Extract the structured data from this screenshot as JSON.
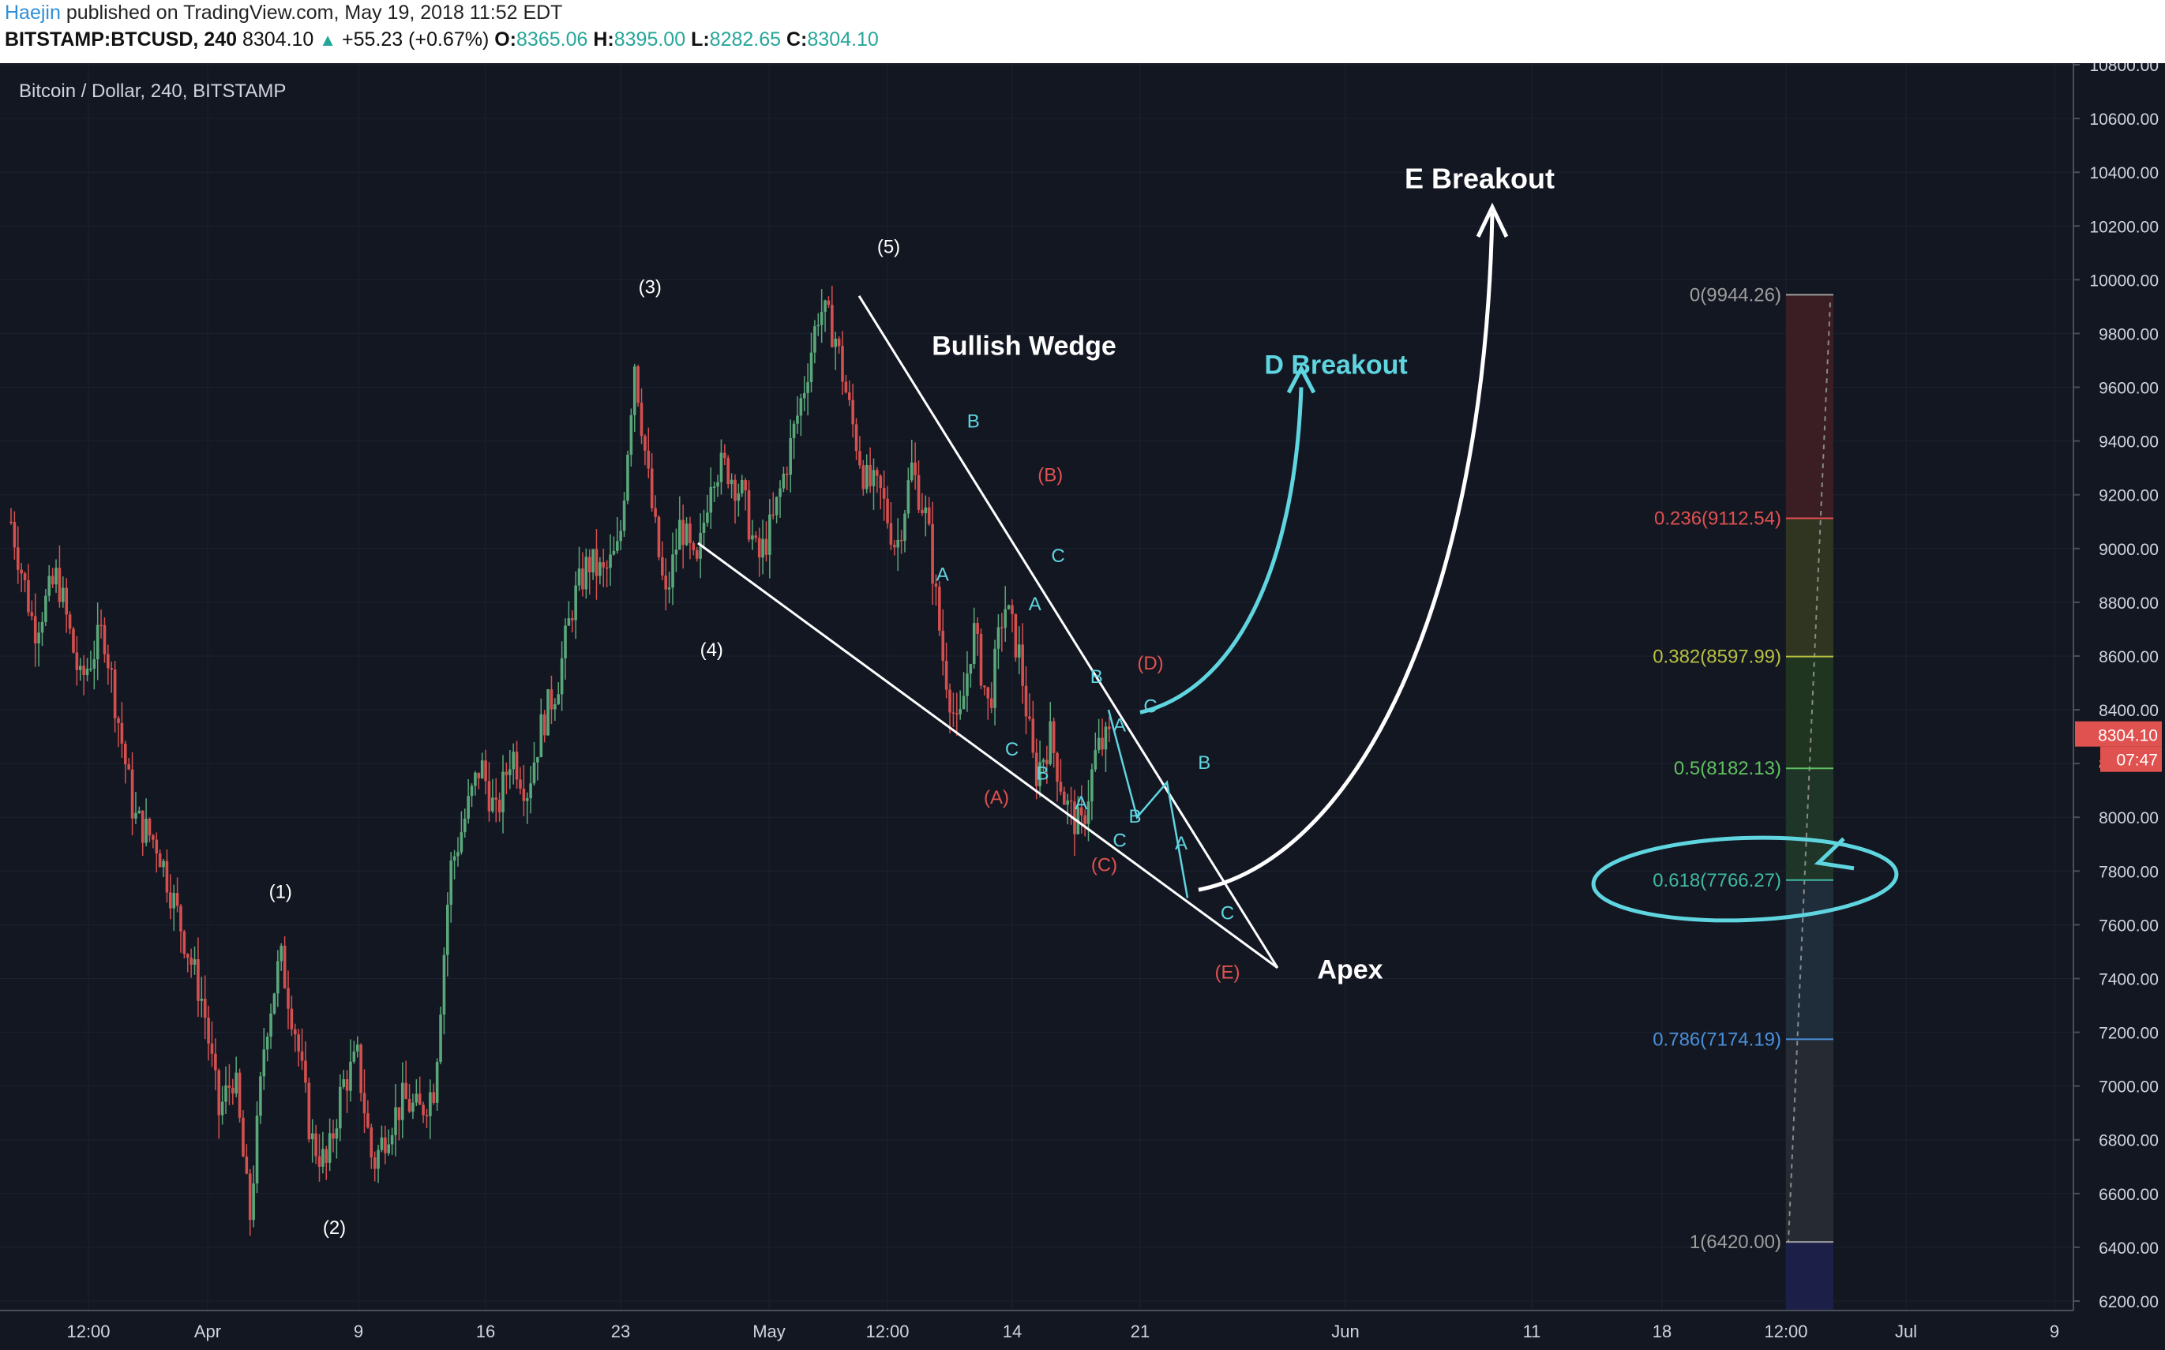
{
  "header": {
    "author": "Haejin",
    "published_text": "published on TradingView.com, May 19, 2018 11:52 EDT",
    "symbol": "BITSTAMP:BTCUSD, 240",
    "last": "8304.10",
    "change": "+55.23 (+0.67%)",
    "o_label": "O:",
    "o_value": "8365.06",
    "h_label": "H:",
    "h_value": "8395.00",
    "l_label": "L:",
    "l_value": "8282.65",
    "c_label": "C:",
    "c_value": "8304.10"
  },
  "chart_data": {
    "type": "candlestick",
    "title": "Bitcoin / Dollar, 240, BITSTAMP",
    "ylim": [
      6200,
      10800
    ],
    "y_ticks": [
      "6200.00",
      "6400.00",
      "6600.00",
      "6800.00",
      "7000.00",
      "7200.00",
      "7400.00",
      "7600.00",
      "7800.00",
      "8000.00",
      "8200.00",
      "8400.00",
      "8600.00",
      "8800.00",
      "9000.00",
      "9200.00",
      "9400.00",
      "9600.00",
      "9800.00",
      "10000.00",
      "10200.00",
      "10400.00",
      "10600.00",
      "10800.00"
    ],
    "x_ticks": [
      "12:00",
      "Apr",
      "9",
      "16",
      "23",
      "May",
      "12:00",
      "14",
      "21",
      "Jun",
      "11",
      "18",
      "12:00",
      "Jul",
      "9"
    ],
    "last_price_label": "8304.10",
    "countdown_label": "07:47",
    "price_path": [
      [
        0,
        9100
      ],
      [
        3,
        8700
      ],
      [
        6,
        8900
      ],
      [
        9,
        8500
      ],
      [
        12,
        8700
      ],
      [
        16,
        8000
      ],
      [
        19,
        7900
      ],
      [
        22,
        7600
      ],
      [
        25,
        7300
      ],
      [
        27,
        6900
      ],
      [
        29,
        7050
      ],
      [
        31,
        6500
      ],
      [
        33,
        7200
      ],
      [
        35,
        7480
      ],
      [
        37,
        7200
      ],
      [
        39,
        6800
      ],
      [
        41,
        6700
      ],
      [
        43,
        7000
      ],
      [
        45,
        7100
      ],
      [
        47,
        6700
      ],
      [
        49,
        6850
      ],
      [
        51,
        6950
      ],
      [
        53,
        6900
      ],
      [
        55,
        7000
      ],
      [
        57,
        7800
      ],
      [
        59,
        8000
      ],
      [
        61,
        8200
      ],
      [
        63,
        8000
      ],
      [
        65,
        8250
      ],
      [
        67,
        8100
      ],
      [
        69,
        8350
      ],
      [
        71,
        8500
      ],
      [
        73,
        8800
      ],
      [
        75,
        8950
      ],
      [
        77,
        8900
      ],
      [
        79,
        9000
      ],
      [
        81,
        9700
      ],
      [
        83,
        9200
      ],
      [
        85,
        8800
      ],
      [
        87,
        9100
      ],
      [
        89,
        8900
      ],
      [
        91,
        9300
      ],
      [
        93,
        9300
      ],
      [
        95,
        9200
      ],
      [
        97,
        8950
      ],
      [
        99,
        9100
      ],
      [
        101,
        9350
      ],
      [
        103,
        9600
      ],
      [
        105,
        9900
      ],
      [
        107,
        9800
      ],
      [
        109,
        9500
      ],
      [
        111,
        9250
      ],
      [
        113,
        9200
      ],
      [
        115,
        9000
      ],
      [
        117,
        9300
      ],
      [
        119,
        9100
      ],
      [
        121,
        8600
      ],
      [
        123,
        8300
      ],
      [
        125,
        8700
      ],
      [
        127,
        8400
      ],
      [
        129,
        8800
      ],
      [
        131,
        8600
      ],
      [
        133,
        8150
      ],
      [
        135,
        8300
      ],
      [
        137,
        8050
      ],
      [
        139,
        7950
      ],
      [
        141,
        8250
      ],
      [
        143,
        8300
      ]
    ],
    "wave_labels": [
      {
        "text": "(1)",
        "t": 35,
        "y": 7700,
        "color": "white"
      },
      {
        "text": "(2)",
        "t": 42,
        "y": 6450,
        "color": "white"
      },
      {
        "text": "(3)",
        "t": 83,
        "y": 9950,
        "color": "white"
      },
      {
        "text": "(4)",
        "t": 91,
        "y": 8600,
        "color": "white"
      },
      {
        "text": "(5)",
        "t": 114,
        "y": 10100,
        "color": "white"
      },
      {
        "text": "(A)",
        "t": 128,
        "y": 8050,
        "color": "red"
      },
      {
        "text": "(B)",
        "t": 135,
        "y": 9250,
        "color": "red"
      },
      {
        "text": "(C)",
        "t": 142,
        "y": 7800,
        "color": "red"
      },
      {
        "text": "(D)",
        "t": 148,
        "y": 8550,
        "color": "red"
      },
      {
        "text": "(E)",
        "t": 158,
        "y": 7400,
        "color": "red"
      },
      {
        "text": "B",
        "t": 125,
        "y": 9450,
        "color": "cyan"
      },
      {
        "text": "A",
        "t": 121,
        "y": 8880,
        "color": "cyan"
      },
      {
        "text": "C",
        "t": 136,
        "y": 8950,
        "color": "cyan"
      },
      {
        "text": "A",
        "t": 133,
        "y": 8770,
        "color": "cyan"
      },
      {
        "text": "C",
        "t": 130,
        "y": 8230,
        "color": "cyan"
      },
      {
        "text": "B",
        "t": 134,
        "y": 8140,
        "color": "cyan"
      },
      {
        "text": "B",
        "t": 141,
        "y": 8500,
        "color": "cyan"
      },
      {
        "text": "A",
        "t": 139,
        "y": 8030,
        "color": "cyan"
      },
      {
        "text": "A",
        "t": 144,
        "y": 8320,
        "color": "cyan"
      },
      {
        "text": "B",
        "t": 146,
        "y": 7980,
        "color": "cyan"
      },
      {
        "text": "C",
        "t": 144,
        "y": 7890,
        "color": "cyan"
      },
      {
        "text": "C",
        "t": 148,
        "y": 8390,
        "color": "cyan"
      },
      {
        "text": "B",
        "t": 155,
        "y": 8180,
        "color": "cyan"
      },
      {
        "text": "A",
        "t": 152,
        "y": 7880,
        "color": "cyan"
      },
      {
        "text": "C",
        "t": 158,
        "y": 7620,
        "color": "cyan"
      }
    ],
    "annotations": {
      "bullish_wedge": "Bullish Wedge",
      "d_breakout": "D Breakout",
      "e_breakout": "E Breakout",
      "apex": "Apex"
    },
    "fib_levels": [
      {
        "label": "0(9944.26)",
        "ratio": 0,
        "price": 9944.26,
        "color": "#9e9e9e"
      },
      {
        "label": "0.236(9112.54)",
        "ratio": 0.236,
        "price": 9112.54,
        "color": "#e05050"
      },
      {
        "label": "0.382(8597.99)",
        "ratio": 0.382,
        "price": 8597.99,
        "color": "#b8c040"
      },
      {
        "label": "0.5(8182.13)",
        "ratio": 0.5,
        "price": 8182.13,
        "color": "#60c060"
      },
      {
        "label": "0.618(7766.27)",
        "ratio": 0.618,
        "price": 7766.27,
        "color": "#40b8a0"
      },
      {
        "label": "0.786(7174.19)",
        "ratio": 0.786,
        "price": 7174.19,
        "color": "#4a90d9"
      },
      {
        "label": "1(6420.00)",
        "ratio": 1,
        "price": 6420.0,
        "color": "#9e9e9e"
      }
    ]
  },
  "colors": {
    "background": "#131722",
    "up_candle": "#5aa77a",
    "down_candle": "#d4504f",
    "cyan": "#5fd5e0",
    "axis_bg": "#131722"
  }
}
